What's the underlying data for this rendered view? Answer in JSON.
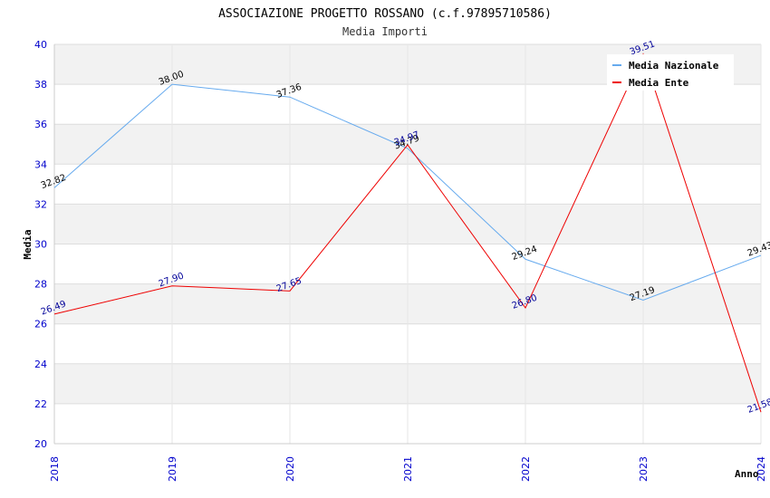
{
  "chart_data": {
    "type": "line",
    "title": "ASSOCIAZIONE PROGETTO ROSSANO (c.f.97895710586)",
    "subtitle": "Media Importi",
    "xlabel": "Anno",
    "ylabel": "Media",
    "categories": [
      "2018",
      "2019",
      "2020",
      "2021",
      "2022",
      "2023",
      "2024"
    ],
    "ylim": [
      20,
      40
    ],
    "yticks": [
      20,
      22,
      24,
      26,
      28,
      30,
      32,
      34,
      36,
      38,
      40
    ],
    "grid": true,
    "legend_position": "top-right",
    "series": [
      {
        "name": "Media Nazionale",
        "color": "#66aaee",
        "label_color": "#000000",
        "values": [
          32.82,
          38.0,
          37.36,
          34.79,
          29.24,
          27.19,
          29.43
        ],
        "labels": [
          "32.82",
          "38.00",
          "37.36",
          "34.79",
          "29.24",
          "27.19",
          "29.43"
        ]
      },
      {
        "name": "Media Ente",
        "color": "#ee0000",
        "label_color": "#000099",
        "values": [
          26.49,
          27.9,
          27.65,
          34.97,
          26.8,
          39.51,
          21.58
        ],
        "labels": [
          "26.49",
          "27.90",
          "27.65",
          "34.97",
          "26.80",
          "39.51",
          "21.58"
        ]
      }
    ]
  }
}
